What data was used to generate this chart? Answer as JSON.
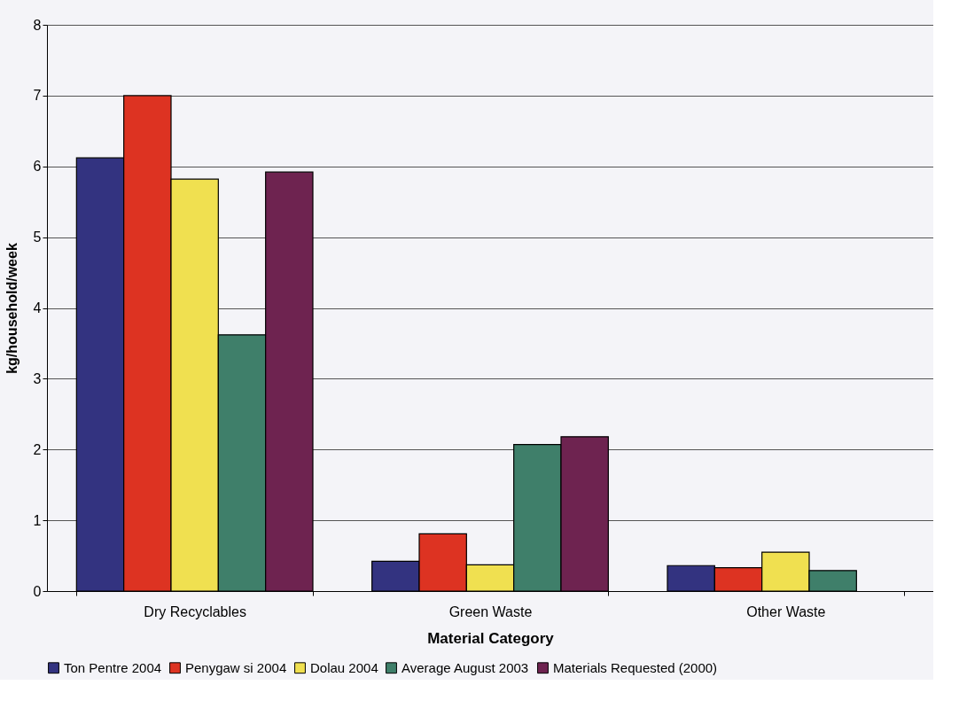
{
  "chart_data": {
    "type": "bar",
    "xlabel": "Material Category",
    "ylabel": "kg/household/week",
    "categories": [
      "Dry Recyclables",
      "Green Waste",
      "Other Waste"
    ],
    "series": [
      {
        "name": "Ton Pentre 2004",
        "color": "#333380",
        "values": [
          6.12,
          0.42,
          0.36
        ]
      },
      {
        "name": "Penygaw si 2004",
        "color": "#dd3322",
        "values": [
          7.0,
          0.81,
          0.33
        ]
      },
      {
        "name": "Dolau 2004",
        "color": "#f0e050",
        "values": [
          5.82,
          0.37,
          0.55
        ]
      },
      {
        "name": "Average August 2003",
        "color": "#3f7f6a",
        "values": [
          3.62,
          2.07,
          0.29
        ]
      },
      {
        "name": "Materials Requested (2000)",
        "color": "#6e2350",
        "values": [
          5.92,
          2.18,
          null
        ]
      }
    ],
    "ylim": [
      0,
      8
    ],
    "yticks": [
      0,
      1,
      2,
      3,
      4,
      5,
      6,
      7,
      8
    ],
    "grid": "y",
    "legend": "bottom"
  }
}
